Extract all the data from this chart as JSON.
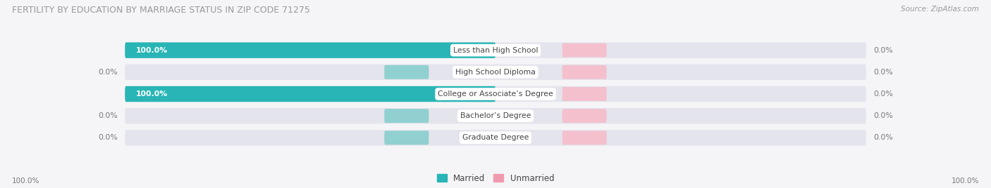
{
  "title": "FERTILITY BY EDUCATION BY MARRIAGE STATUS IN ZIP CODE 71275",
  "source": "Source: ZipAtlas.com",
  "categories": [
    "Less than High School",
    "High School Diploma",
    "College or Associate’s Degree",
    "Bachelor’s Degree",
    "Graduate Degree"
  ],
  "married_values": [
    100.0,
    0.0,
    100.0,
    0.0,
    0.0
  ],
  "unmarried_values": [
    0.0,
    0.0,
    0.0,
    0.0,
    0.0
  ],
  "married_color": "#29b5b5",
  "unmarried_color": "#f09ab0",
  "married_light_color": "#90d0d0",
  "unmarried_light_color": "#f4c0ce",
  "bar_bg_color": "#e4e4ec",
  "bg_color": "#f5f5f8",
  "title_color": "#999999",
  "label_color": "#444444",
  "value_white": "#ffffff",
  "value_color": "#777777",
  "figsize": [
    14.06,
    2.68
  ],
  "dpi": 100
}
